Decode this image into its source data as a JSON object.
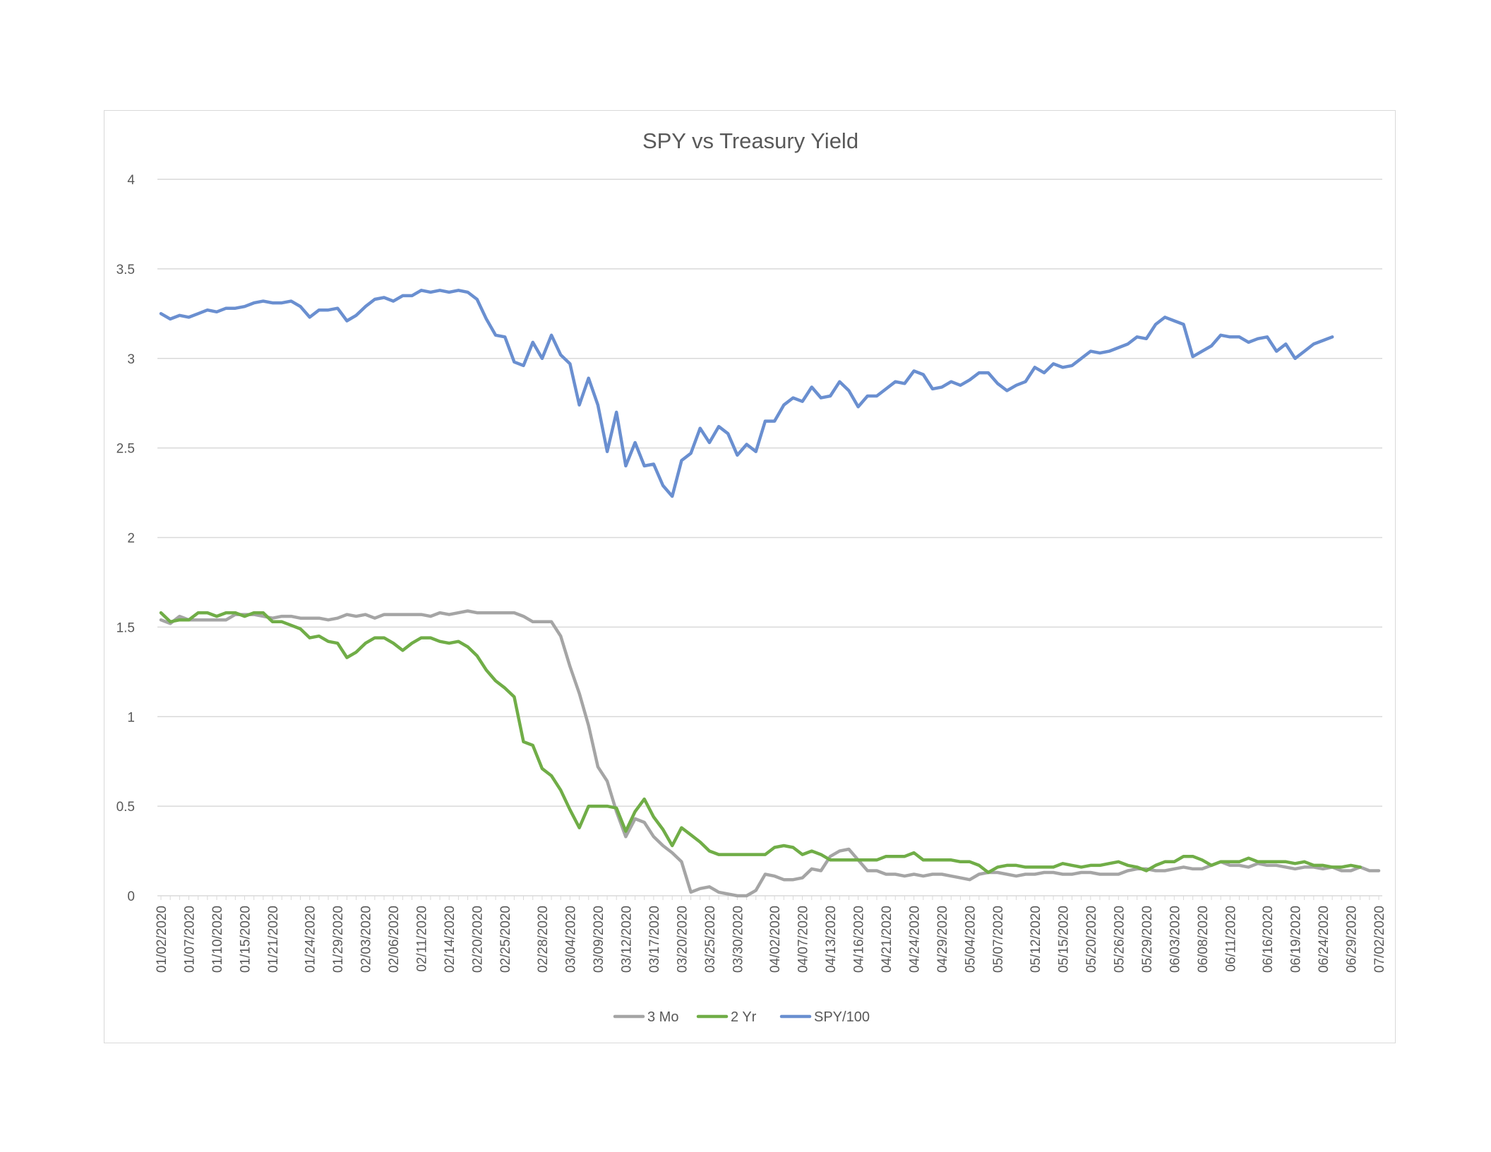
{
  "chart_data": {
    "type": "line",
    "title": "SPY vs Treasury Yield",
    "xlabel": "",
    "ylabel": "",
    "ylim": [
      0,
      4
    ],
    "yticks": [
      0,
      0.5,
      1,
      1.5,
      2,
      2.5,
      3,
      3.5,
      4
    ],
    "grid": true,
    "legend_position": "bottom",
    "x_tick_labels": [
      "01/02/2020",
      "01/07/2020",
      "01/10/2020",
      "01/15/2020",
      "01/21/2020",
      "01/24/2020",
      "01/29/2020",
      "02/03/2020",
      "02/06/2020",
      "02/11/2020",
      "02/14/2020",
      "02/20/2020",
      "02/25/2020",
      "02/28/2020",
      "03/04/2020",
      "03/09/2020",
      "03/12/2020",
      "03/17/2020",
      "03/20/2020",
      "03/25/2020",
      "03/30/2020",
      "04/02/2020",
      "04/07/2020",
      "04/13/2020",
      "04/16/2020",
      "04/21/2020",
      "04/24/2020",
      "04/29/2020",
      "05/04/2020",
      "05/07/2020",
      "05/12/2020",
      "05/15/2020",
      "05/20/2020",
      "05/26/2020",
      "05/29/2020",
      "06/03/2020",
      "06/08/2020",
      "06/11/2020",
      "06/16/2020",
      "06/19/2020",
      "06/24/2020",
      "06/29/2020",
      "07/02/2020"
    ],
    "series": [
      {
        "name": "3 Mo",
        "color": "#a5a5a5",
        "values": [
          1.54,
          1.52,
          1.56,
          1.54,
          1.54,
          1.54,
          1.54,
          1.54,
          1.57,
          1.57,
          1.57,
          1.56,
          1.55,
          1.56,
          1.56,
          1.55,
          1.55,
          1.55,
          1.54,
          1.55,
          1.57,
          1.56,
          1.57,
          1.55,
          1.57,
          1.57,
          1.57,
          1.57,
          1.57,
          1.56,
          1.58,
          1.57,
          1.58,
          1.59,
          1.58,
          1.58,
          1.58,
          1.58,
          1.58,
          1.56,
          1.53,
          1.53,
          1.53,
          1.45,
          1.28,
          1.13,
          0.95,
          0.72,
          0.64,
          0.47,
          0.33,
          0.43,
          0.41,
          0.33,
          0.28,
          0.24,
          0.19,
          0.02,
          0.04,
          0.05,
          0.02,
          0.01,
          0.0,
          0.0,
          0.03,
          0.12,
          0.11,
          0.09,
          0.09,
          0.1,
          0.15,
          0.14,
          0.22,
          0.25,
          0.26,
          0.2,
          0.14,
          0.14,
          0.12,
          0.12,
          0.11,
          0.12,
          0.11,
          0.12,
          0.12,
          0.11,
          0.1,
          0.09,
          0.12,
          0.13,
          0.13,
          0.12,
          0.11,
          0.12,
          0.12,
          0.13,
          0.13,
          0.12,
          0.12,
          0.13,
          0.13,
          0.12,
          0.12,
          0.12,
          0.14,
          0.15,
          0.15,
          0.14,
          0.14,
          0.15,
          0.16,
          0.15,
          0.15,
          0.17,
          0.19,
          0.17,
          0.17,
          0.16,
          0.18,
          0.17,
          0.17,
          0.16,
          0.15,
          0.16,
          0.16,
          0.15,
          0.16,
          0.14,
          0.14,
          0.16,
          0.14,
          0.14
        ]
      },
      {
        "name": "2 Yr",
        "color": "#70ad47",
        "values": [
          1.58,
          1.53,
          1.54,
          1.54,
          1.58,
          1.58,
          1.56,
          1.58,
          1.58,
          1.56,
          1.58,
          1.58,
          1.53,
          1.53,
          1.51,
          1.49,
          1.44,
          1.45,
          1.42,
          1.41,
          1.33,
          1.36,
          1.41,
          1.44,
          1.44,
          1.41,
          1.37,
          1.41,
          1.44,
          1.44,
          1.42,
          1.41,
          1.42,
          1.39,
          1.34,
          1.26,
          1.2,
          1.16,
          1.11,
          0.86,
          0.84,
          0.71,
          0.67,
          0.59,
          0.48,
          0.38,
          0.5,
          0.5,
          0.5,
          0.49,
          0.36,
          0.47,
          0.54,
          0.44,
          0.37,
          0.28,
          0.38,
          0.34,
          0.3,
          0.25,
          0.23,
          0.23,
          0.23,
          0.23,
          0.23,
          0.23,
          0.27,
          0.28,
          0.27,
          0.23,
          0.25,
          0.23,
          0.2,
          0.2,
          0.2,
          0.2,
          0.2,
          0.2,
          0.22,
          0.22,
          0.22,
          0.24,
          0.2,
          0.2,
          0.2,
          0.2,
          0.19,
          0.19,
          0.17,
          0.13,
          0.16,
          0.17,
          0.17,
          0.16,
          0.16,
          0.16,
          0.16,
          0.18,
          0.17,
          0.16,
          0.17,
          0.17,
          0.18,
          0.19,
          0.17,
          0.16,
          0.14,
          0.17,
          0.19,
          0.19,
          0.22,
          0.22,
          0.2,
          0.17,
          0.19,
          0.19,
          0.19,
          0.21,
          0.19,
          0.19,
          0.19,
          0.19,
          0.18,
          0.19,
          0.17,
          0.17,
          0.16,
          0.16,
          0.17,
          0.16
        ]
      },
      {
        "name": "SPY/100",
        "color": "#6a8fd0",
        "values": [
          3.25,
          3.22,
          3.24,
          3.23,
          3.25,
          3.27,
          3.26,
          3.28,
          3.28,
          3.29,
          3.31,
          3.32,
          3.31,
          3.31,
          3.32,
          3.29,
          3.23,
          3.27,
          3.27,
          3.28,
          3.21,
          3.24,
          3.29,
          3.33,
          3.34,
          3.32,
          3.35,
          3.35,
          3.38,
          3.37,
          3.38,
          3.37,
          3.38,
          3.37,
          3.33,
          3.22,
          3.13,
          3.12,
          2.98,
          2.96,
          3.09,
          3.0,
          3.13,
          3.02,
          2.97,
          2.74,
          2.89,
          2.74,
          2.48,
          2.7,
          2.4,
          2.53,
          2.4,
          2.41,
          2.29,
          2.23,
          2.43,
          2.47,
          2.61,
          2.53,
          2.62,
          2.58,
          2.46,
          2.52,
          2.48,
          2.65,
          2.65,
          2.74,
          2.78,
          2.76,
          2.84,
          2.78,
          2.79,
          2.87,
          2.82,
          2.73,
          2.79,
          2.79,
          2.83,
          2.87,
          2.86,
          2.93,
          2.91,
          2.83,
          2.84,
          2.87,
          2.85,
          2.88,
          2.92,
          2.92,
          2.86,
          2.82,
          2.85,
          2.87,
          2.95,
          2.92,
          2.97,
          2.95,
          2.96,
          3.0,
          3.04,
          3.03,
          3.04,
          3.06,
          3.08,
          3.12,
          3.11,
          3.19,
          3.23,
          3.21,
          3.19,
          3.01,
          3.04,
          3.07,
          3.13,
          3.12,
          3.12,
          3.09,
          3.11,
          3.12,
          3.04,
          3.08,
          3.0,
          3.04,
          3.08,
          3.1,
          3.12
        ]
      }
    ]
  }
}
